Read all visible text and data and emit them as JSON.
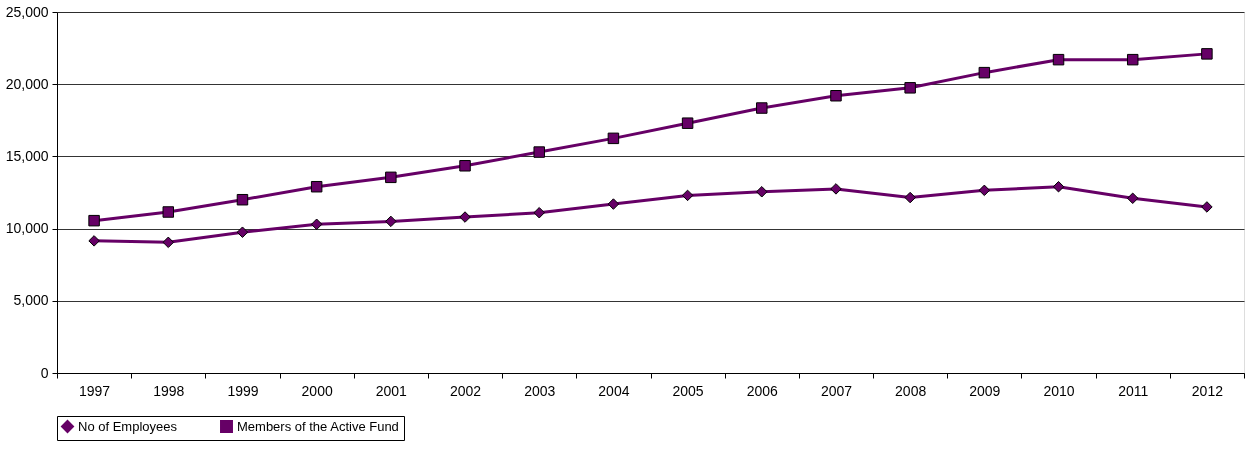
{
  "chart_data": {
    "type": "line",
    "categories": [
      "1997",
      "1998",
      "1999",
      "2000",
      "2001",
      "2002",
      "2003",
      "2004",
      "2005",
      "2006",
      "2007",
      "2008",
      "2009",
      "2010",
      "2011",
      "2012"
    ],
    "series": [
      {
        "name": "No of Employees",
        "color": "#660066",
        "marker": "diamond",
        "values": [
          9150,
          9050,
          9750,
          10300,
          10500,
          10800,
          11100,
          11700,
          12300,
          12550,
          12750,
          12150,
          12650,
          12900,
          12100,
          11500
        ]
      },
      {
        "name": "Members of the Active Fund",
        "color": "#660066",
        "marker": "square",
        "values": [
          10550,
          11150,
          12000,
          12900,
          13550,
          14350,
          15300,
          16250,
          17300,
          18350,
          19200,
          19750,
          20800,
          21700,
          21700,
          22100
        ]
      }
    ],
    "ylim": [
      0,
      25000
    ],
    "yticks": [
      0,
      {
        "value": 5000,
        "label": "5,000"
      },
      {
        "value": 10000,
        "label": "10,000"
      },
      {
        "value": 15000,
        "label": "15,000"
      },
      {
        "value": 20000,
        "label": "20,000"
      },
      {
        "value": 25000,
        "label": "25,000"
      }
    ],
    "grid": "y",
    "legend": "bottom",
    "line_style": "solid"
  }
}
